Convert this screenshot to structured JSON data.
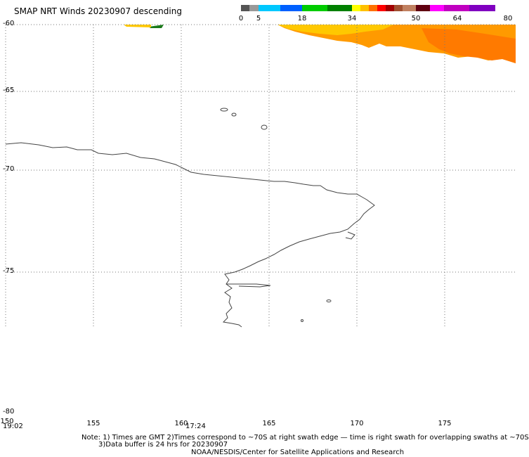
{
  "title": "SMAP NRT Winds  20230907 descending",
  "legend": {
    "labels": [
      "0",
      "5",
      "18",
      "34",
      "50",
      "64",
      "80"
    ],
    "colors": [
      "#555555",
      "#999999",
      "#00c8ff",
      "#0060ff",
      "#00cc00",
      "#008000",
      "#ffff00",
      "#ffc000",
      "#ff7000",
      "#ff0000",
      "#a00000",
      "#a05030",
      "#c08060",
      "#600010",
      "#ff00ff",
      "#c000c0",
      "#8000c0"
    ]
  },
  "axes": {
    "lat_ticks": [
      "-60",
      "-65",
      "-70",
      "-75",
      "-80"
    ],
    "lon_ticks": [
      "150",
      "155",
      "160",
      "165",
      "170",
      "175"
    ],
    "time_labels": [
      "19:02",
      "17:24"
    ]
  },
  "notes": {
    "line1": "Note: 1) Times are GMT 2)Times correspond to ~70S at right swath edge — time is right swath for overlapping swaths at ~70S",
    "line2": "3)Data buffer is 24 hrs for 20230907",
    "line3": "NOAA/NESDIS/Center for Satellite Applications and Research"
  },
  "colors": {
    "coastline": "#444444",
    "grid": "#777777",
    "wind_orange": "#ff9a00",
    "wind_yellow": "#ffc800",
    "wind_dark_orange": "#ff7a00",
    "wind_green": "#1a7a1a"
  }
}
